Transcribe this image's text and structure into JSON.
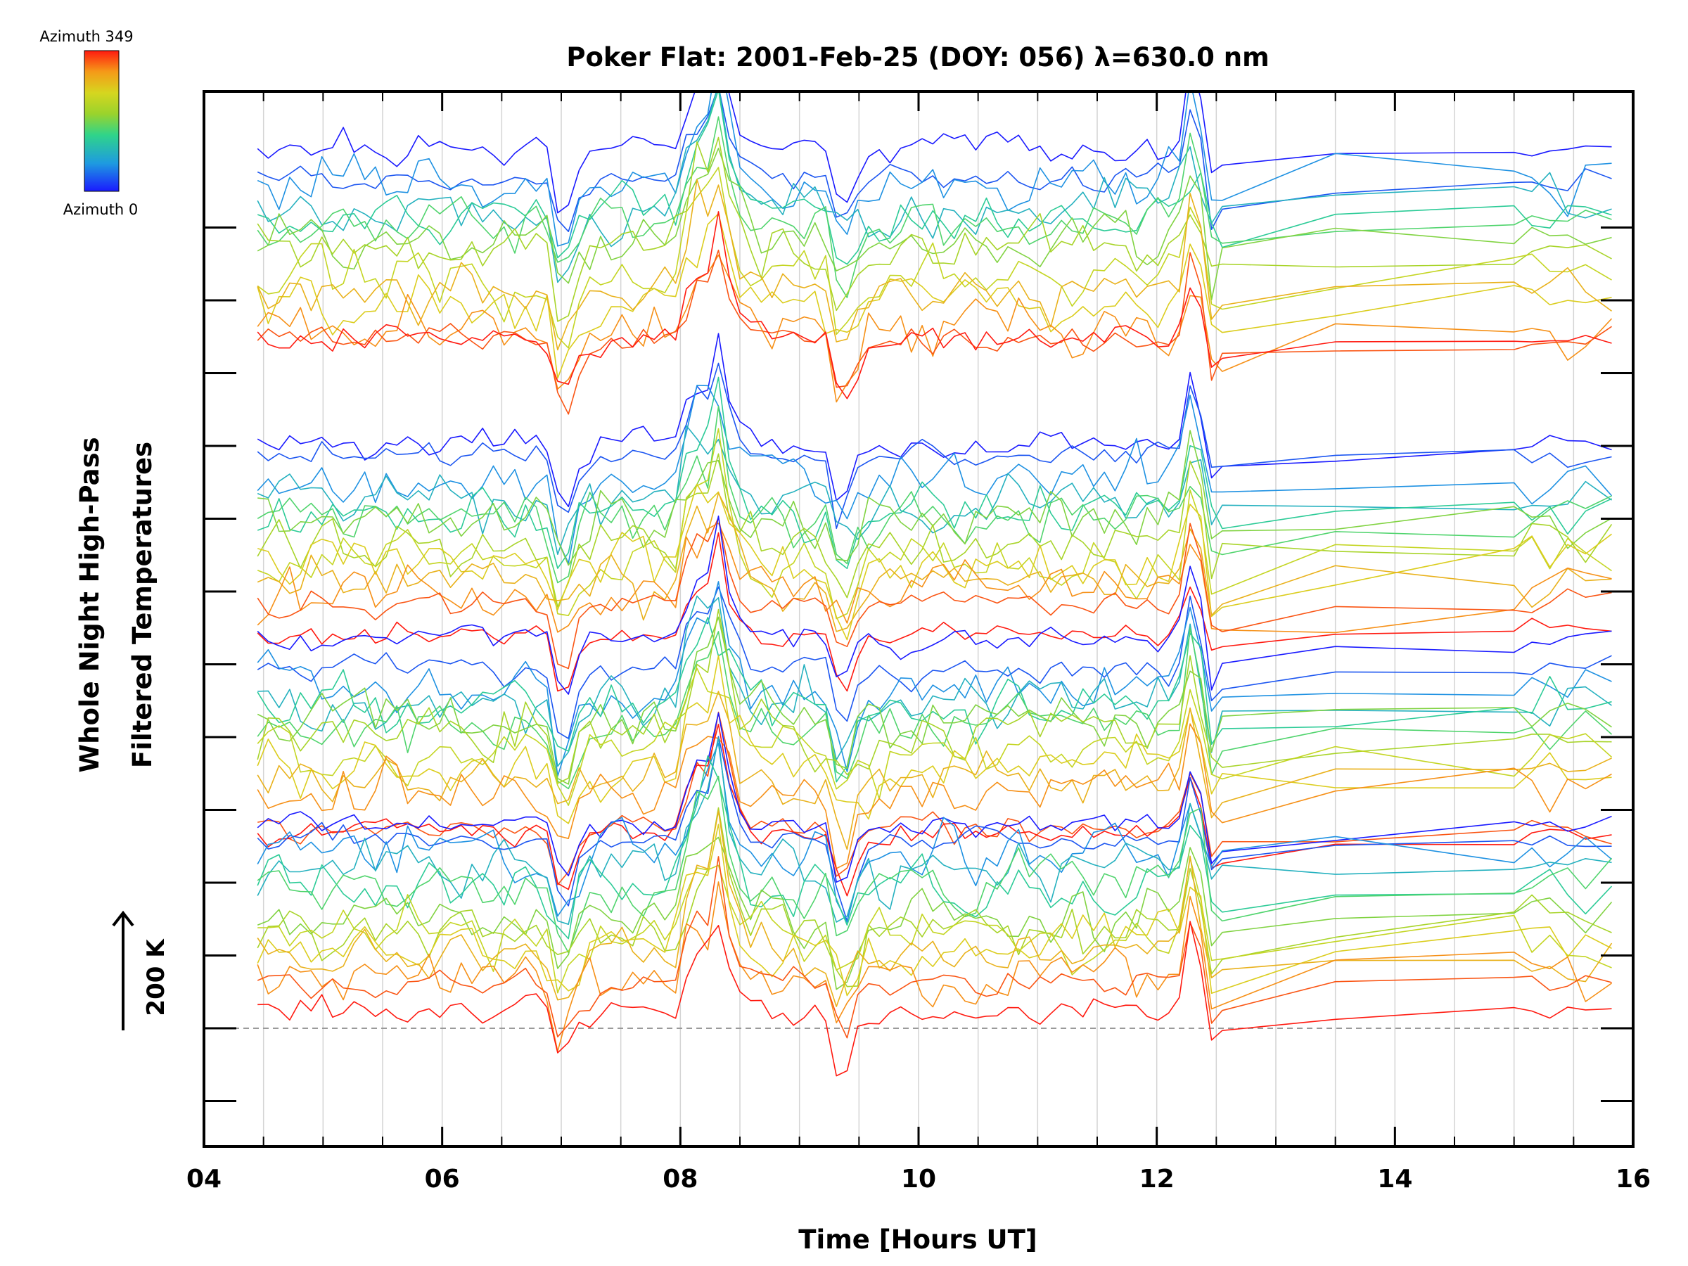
{
  "chart_data": {
    "type": "line",
    "title": "Poker Flat: 2001-Feb-25 (DOY: 056) λ=630.0 nm",
    "xlabel": "Time [Hours UT]",
    "ylabel_line1": "Whole Night High-Pass",
    "ylabel_line2": "Filtered Temperatures",
    "xlim": [
      4,
      16
    ],
    "x_ticks": [
      {
        "value": 4,
        "label": "04"
      },
      {
        "value": 6,
        "label": "06"
      },
      {
        "value": 8,
        "label": "08"
      },
      {
        "value": 10,
        "label": "10"
      },
      {
        "value": 12,
        "label": "12"
      },
      {
        "value": 14,
        "label": "14"
      },
      {
        "value": 16,
        "label": "16"
      }
    ],
    "grid": "vertical, every 0.5 hours",
    "scale_arrow_label": "200 K",
    "colorbar": {
      "top_label": "Azimuth 349",
      "bottom_label": "Azimuth 0",
      "colormap": "rainbow (blue to red)"
    },
    "series_note": "Dozens of per-azimuth traces, vertically offset into four bands; each colored by azimuth."
  }
}
